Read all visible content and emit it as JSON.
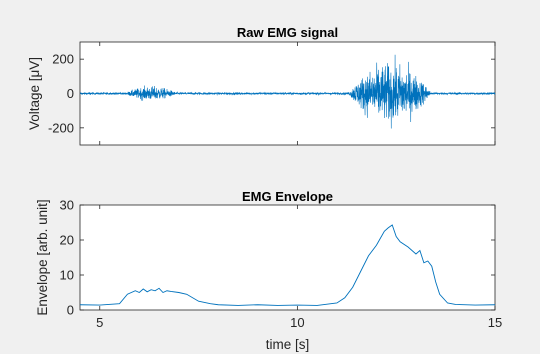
{
  "chart_data": [
    {
      "type": "line",
      "title": "Raw EMG signal",
      "xlabel": "",
      "ylabel": "Voltage [μV]",
      "xlim": [
        4.5,
        15
      ],
      "ylim": [
        -300,
        300
      ],
      "yticks": [
        -200,
        0,
        200
      ],
      "xticks": [],
      "grid": false,
      "color": "#0072bd",
      "bursts": [
        {
          "start": 5.6,
          "end": 7.0,
          "peak_amplitude": 60
        },
        {
          "start": 11.3,
          "end": 13.7,
          "peak_amplitude": 250
        }
      ],
      "baseline_noise": 5
    },
    {
      "type": "line",
      "title": "EMG Envelope",
      "xlabel": "time [s]",
      "ylabel": "Envelope [arb. unit]",
      "xlim": [
        4.5,
        15
      ],
      "ylim": [
        0,
        30
      ],
      "yticks": [
        0,
        10,
        20,
        30
      ],
      "xticks": [
        5,
        10,
        15
      ],
      "grid": false,
      "color": "#0072bd",
      "x": [
        4.5,
        5.0,
        5.5,
        5.7,
        5.9,
        6.0,
        6.1,
        6.2,
        6.3,
        6.4,
        6.5,
        6.6,
        6.7,
        6.8,
        7.0,
        7.2,
        7.5,
        7.8,
        8.0,
        8.5,
        9.0,
        9.5,
        10.0,
        10.5,
        11.0,
        11.2,
        11.4,
        11.6,
        11.8,
        12.0,
        12.1,
        12.2,
        12.3,
        12.4,
        12.5,
        12.6,
        12.8,
        13.0,
        13.1,
        13.2,
        13.3,
        13.4,
        13.5,
        13.6,
        13.8,
        14.0,
        14.5,
        15.0
      ],
      "y": [
        1.5,
        1.4,
        1.8,
        4.5,
        5.5,
        5.0,
        6.0,
        5.2,
        5.8,
        5.5,
        6.2,
        5.0,
        5.5,
        5.3,
        5.0,
        4.5,
        2.5,
        1.8,
        1.5,
        1.3,
        1.5,
        1.3,
        1.4,
        1.3,
        2.0,
        3.5,
        6.5,
        11.0,
        15.5,
        18.5,
        20.5,
        22.5,
        23.5,
        24.3,
        21.0,
        19.5,
        18.0,
        16.0,
        17.0,
        13.5,
        14.0,
        12.5,
        8.0,
        4.5,
        2.0,
        1.6,
        1.4,
        1.5
      ]
    }
  ]
}
